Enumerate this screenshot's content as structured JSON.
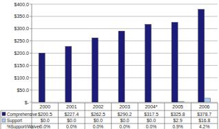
{
  "chart_data": {
    "type": "bar",
    "categories": [
      "2000",
      "2001",
      "2002",
      "2003",
      "2004*",
      "2005",
      "2006"
    ],
    "series": [
      {
        "name": "Comprehensive",
        "color": "#1c1c78",
        "values": [
          200.5,
          227.4,
          262.5,
          290.2,
          317.5,
          325.8,
          378.7
        ],
        "value_labels": [
          "$200.5",
          "$227.4",
          "$262.5",
          "$290.2",
          "$317.5",
          "$325.8",
          "$378.7"
        ]
      },
      {
        "name": "Support",
        "color": "#a9cdf2",
        "values": [
          0,
          0,
          0,
          0,
          0,
          2.9,
          16.8
        ],
        "value_labels": [
          "$0.0",
          "$0.0",
          "$0.0",
          "$0.0",
          "$0.0",
          "$2.9",
          "$16.8"
        ]
      },
      {
        "name": "%Support/Waiver",
        "type": "table",
        "values": [
          0,
          0,
          0,
          0,
          0,
          0.9,
          4.2
        ],
        "value_labels": [
          "0.0%",
          "0.0%",
          "0.0%",
          "0.0%",
          "0.0%",
          "0.9%",
          "4.2%"
        ]
      }
    ],
    "ylim": [
      0,
      400
    ],
    "yticks": [
      {
        "value": 0,
        "label": "$-"
      },
      {
        "value": 50,
        "label": "$50.0"
      },
      {
        "value": 100,
        "label": "$100.0"
      },
      {
        "value": 150,
        "label": "$150.0"
      },
      {
        "value": 200,
        "label": "$200.0"
      },
      {
        "value": 250,
        "label": "$250.0"
      },
      {
        "value": 300,
        "label": "$300.0"
      },
      {
        "value": 350,
        "label": "$350.0"
      },
      {
        "value": 400,
        "label": "$400.0"
      }
    ],
    "grid": true
  }
}
